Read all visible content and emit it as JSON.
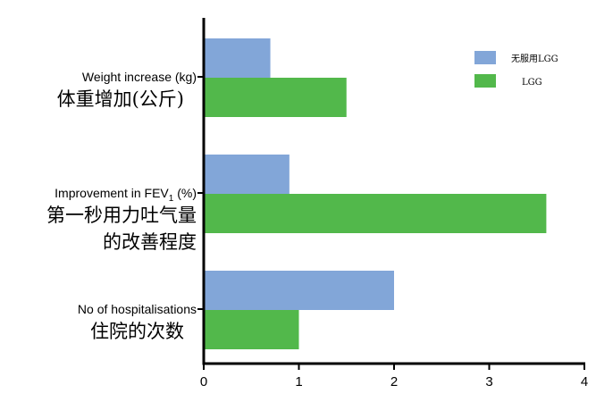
{
  "chart_data": {
    "type": "bar",
    "orientation": "horizontal",
    "categories": [
      {
        "label_en": "Weight increase (kg)",
        "label_zh_lines": [
          "体重增加(公斤)"
        ]
      },
      {
        "label_en": "Improvement in FEV",
        "label_en_sub": "1",
        "label_en_suffix": " (%)",
        "label_zh_lines": [
          "第一秒用力吐气量",
          "的改善程度"
        ]
      },
      {
        "label_en": "No of hospitalisations",
        "label_zh_lines": [
          "住院的次数"
        ]
      }
    ],
    "series": [
      {
        "name": "无服用LGG",
        "color": "#82a6d8",
        "values": [
          0.7,
          0.9,
          2.0
        ]
      },
      {
        "name": "LGG",
        "color": "#52b84b",
        "values": [
          1.5,
          3.6,
          1.0
        ]
      }
    ],
    "xlim": [
      0,
      4
    ],
    "xticks": [
      "0",
      "1",
      "2",
      "3",
      "4"
    ],
    "legend_position": "top-right",
    "grid": false
  }
}
